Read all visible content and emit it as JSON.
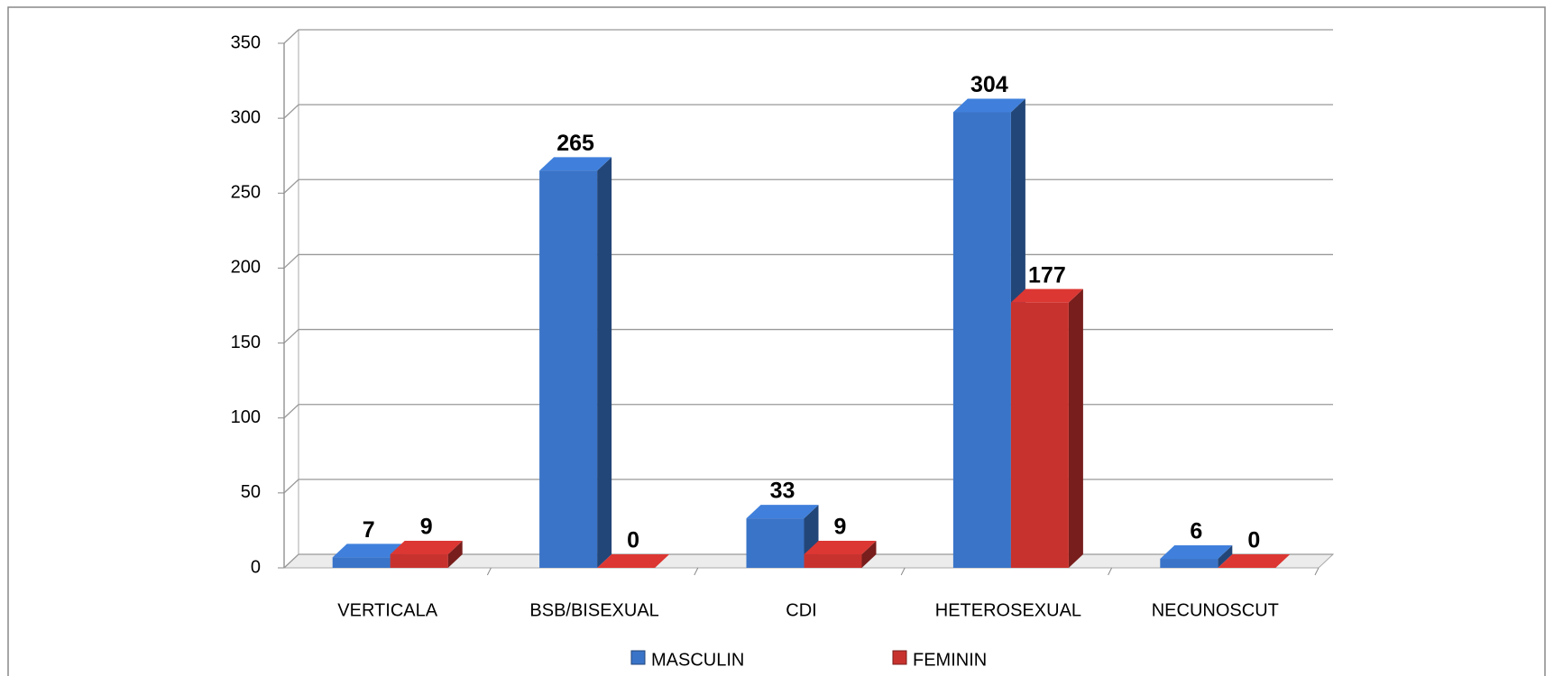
{
  "chart_data": {
    "type": "bar3d",
    "categories": [
      "VERTICALA",
      "BSB/BISEXUAL",
      "CDI",
      "HETEROSEXUAL",
      "NECUNOSCUT"
    ],
    "series": [
      {
        "name": "MASCULIN",
        "color": "#3a74c8",
        "values": [
          7,
          265,
          33,
          304,
          6
        ]
      },
      {
        "name": "FEMININ",
        "color": "#c8322e",
        "values": [
          9,
          0,
          9,
          177,
          0
        ]
      }
    ],
    "ylim": [
      0,
      350
    ],
    "yticks": [
      0,
      50,
      100,
      150,
      200,
      250,
      300,
      350
    ],
    "grid": true,
    "legend": "bottom"
  }
}
